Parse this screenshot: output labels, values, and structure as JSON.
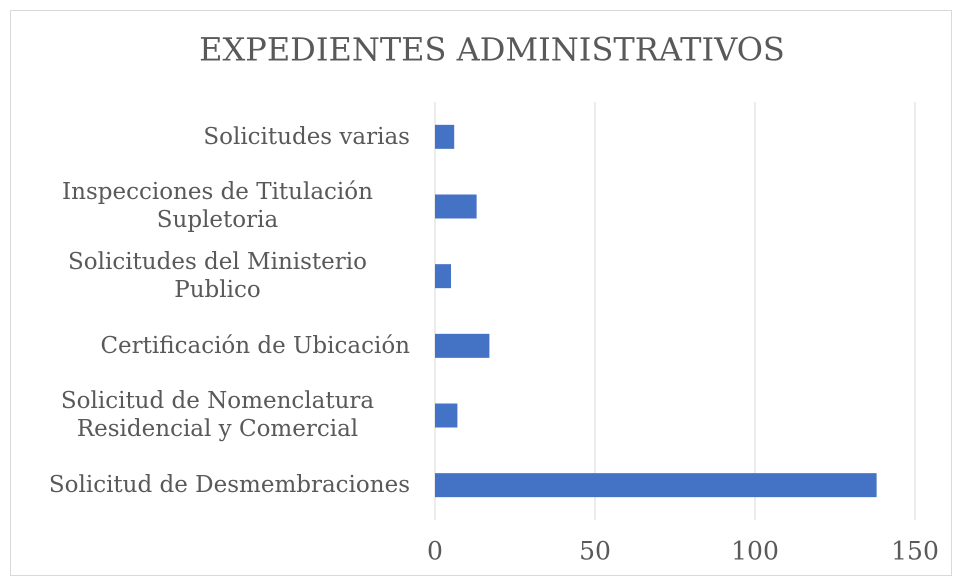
{
  "chart_data": {
    "type": "bar",
    "orientation": "horizontal",
    "title": "EXPEDIENTES ADMINISTRATIVOS",
    "categories": [
      "Solicitudes varias",
      "Inspecciones de Titulación Supletoria",
      "Solicitudes del Ministerio Publico",
      "Certificación de Ubicación",
      "Solicitud de Nomenclatura Residencial y Comercial",
      "Solicitud de Desmembraciones"
    ],
    "values": [
      6,
      13,
      5,
      17,
      7,
      138
    ],
    "color": "#4472c4",
    "xlim": [
      0,
      150
    ],
    "xticks": [
      0,
      50,
      100,
      150
    ],
    "grid": true
  }
}
